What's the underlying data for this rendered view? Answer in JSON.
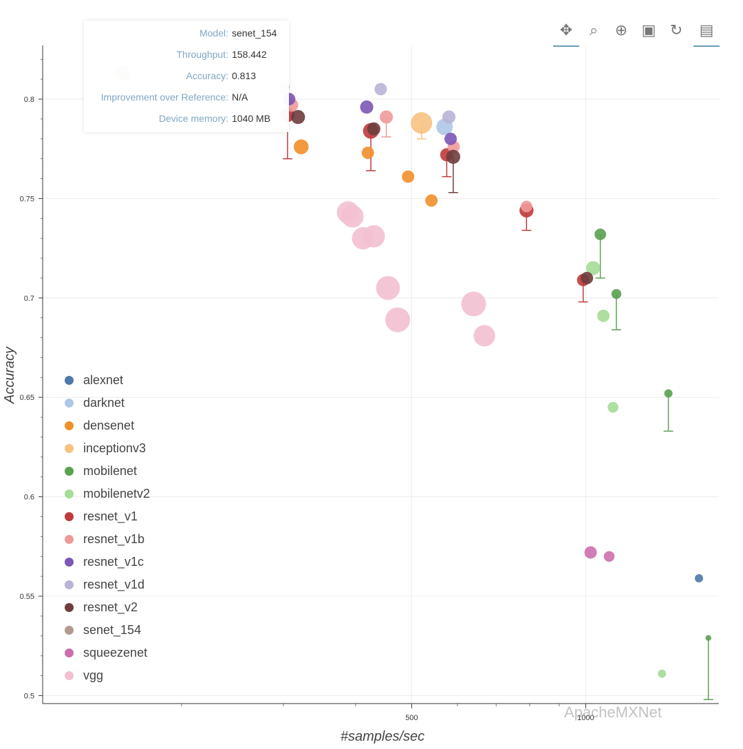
{
  "chart_data": {
    "type": "scatter",
    "title": "",
    "xlabel": "#samples/sec",
    "ylabel": "Accuracy",
    "xscale": "log",
    "xlim": [
      115,
      1700
    ],
    "ylim": [
      0.496,
      0.827
    ],
    "x_ticks": [
      {
        "value": 500,
        "label": "500"
      },
      {
        "value": 1000,
        "label": "1000"
      }
    ],
    "y_ticks": [
      {
        "value": 0.5,
        "label": "0.5"
      },
      {
        "value": 0.55,
        "label": "0.55"
      },
      {
        "value": 0.6,
        "label": "0.6"
      },
      {
        "value": 0.65,
        "label": "0.65"
      },
      {
        "value": 0.7,
        "label": "0.7"
      },
      {
        "value": 0.75,
        "label": "0.75"
      },
      {
        "value": 0.8,
        "label": "0.8"
      }
    ],
    "grid": true,
    "legend_position": "bottom-left",
    "series": [
      {
        "name": "alexnet",
        "color": "#4e79a7",
        "points": [
          {
            "x": 1570,
            "y": 0.559,
            "size": 1.0
          }
        ]
      },
      {
        "name": "darknet",
        "color": "#aec7e8",
        "points": [
          {
            "x": 570,
            "y": 0.786,
            "size": 2.0
          }
        ]
      },
      {
        "name": "densenet",
        "color": "#f28e2b",
        "points": [
          {
            "x": 322,
            "y": 0.776,
            "size": 1.8
          },
          {
            "x": 420,
            "y": 0.773,
            "size": 1.5
          },
          {
            "x": 493,
            "y": 0.761,
            "size": 1.5
          },
          {
            "x": 541,
            "y": 0.749,
            "size": 1.5
          }
        ]
      },
      {
        "name": "inceptionv3",
        "color": "#f7c282",
        "points": [
          {
            "x": 520,
            "y": 0.788,
            "size": 2.6,
            "err": 0.008
          }
        ]
      },
      {
        "name": "mobilenet",
        "color": "#59a14f",
        "points": [
          {
            "x": 1060,
            "y": 0.732,
            "size": 1.4,
            "err": 0.022
          },
          {
            "x": 1130,
            "y": 0.702,
            "size": 1.2,
            "err": 0.018
          },
          {
            "x": 1390,
            "y": 0.652,
            "size": 1.0,
            "err": 0.019
          },
          {
            "x": 1630,
            "y": 0.529,
            "size": 0.7,
            "err": 0.031
          }
        ]
      },
      {
        "name": "mobilenetv2",
        "color": "#a5dc97",
        "points": [
          {
            "x": 1030,
            "y": 0.715,
            "size": 1.7
          },
          {
            "x": 1073,
            "y": 0.691,
            "size": 1.5
          },
          {
            "x": 1115,
            "y": 0.645,
            "size": 1.3
          },
          {
            "x": 1355,
            "y": 0.511,
            "size": 1.0
          }
        ]
      },
      {
        "name": "resnet_v1",
        "color": "#c0393b",
        "points": [
          {
            "x": 305,
            "y": 0.792,
            "size": 1.7,
            "err": 0.022
          },
          {
            "x": 425,
            "y": 0.784,
            "size": 1.9,
            "err": 0.02
          },
          {
            "x": 575,
            "y": 0.772,
            "size": 1.6,
            "err": 0.011
          },
          {
            "x": 790,
            "y": 0.744,
            "size": 1.7,
            "err": 0.01
          },
          {
            "x": 990,
            "y": 0.709,
            "size": 1.5,
            "err": 0.011
          }
        ]
      },
      {
        "name": "resnet_v1b",
        "color": "#ef9a9a",
        "points": [
          {
            "x": 310,
            "y": 0.797,
            "size": 1.6
          },
          {
            "x": 452,
            "y": 0.791,
            "size": 1.6,
            "err": 0.01
          },
          {
            "x": 591,
            "y": 0.776,
            "size": 1.5
          },
          {
            "x": 790,
            "y": 0.746,
            "size": 1.4
          }
        ]
      },
      {
        "name": "resnet_v1c",
        "color": "#7b57b6",
        "points": [
          {
            "x": 307,
            "y": 0.8,
            "size": 1.5
          },
          {
            "x": 418,
            "y": 0.796,
            "size": 1.6
          },
          {
            "x": 584,
            "y": 0.78,
            "size": 1.5
          }
        ]
      },
      {
        "name": "resnet_v1d",
        "color": "#b8b4d6",
        "points": [
          {
            "x": 300,
            "y": 0.806,
            "size": 1.5
          },
          {
            "x": 442,
            "y": 0.805,
            "size": 1.5
          },
          {
            "x": 580,
            "y": 0.791,
            "size": 1.6
          }
        ]
      },
      {
        "name": "resnet_v2",
        "color": "#6e3d3d",
        "points": [
          {
            "x": 318,
            "y": 0.791,
            "size": 1.7
          },
          {
            "x": 430,
            "y": 0.785,
            "size": 1.6
          },
          {
            "x": 590,
            "y": 0.771,
            "size": 1.7,
            "err": 0.018
          },
          {
            "x": 1005,
            "y": 0.71,
            "size": 1.5
          }
        ]
      },
      {
        "name": "senet_154",
        "color": "#b39a90",
        "points": [
          {
            "x": 158.442,
            "y": 0.813,
            "size": 1.8
          }
        ]
      },
      {
        "name": "squeezenet",
        "color": "#cc6fae",
        "points": [
          {
            "x": 1020,
            "y": 0.572,
            "size": 1.5
          },
          {
            "x": 1098,
            "y": 0.57,
            "size": 1.3
          }
        ]
      },
      {
        "name": "vgg",
        "color": "#f3c0d0",
        "points": [
          {
            "x": 388,
            "y": 0.743,
            "size": 2.7
          },
          {
            "x": 395,
            "y": 0.741,
            "size": 2.7
          },
          {
            "x": 412,
            "y": 0.73,
            "size": 2.7
          },
          {
            "x": 430,
            "y": 0.731,
            "size": 2.7
          },
          {
            "x": 455,
            "y": 0.705,
            "size": 2.9
          },
          {
            "x": 473,
            "y": 0.689,
            "size": 3.0
          },
          {
            "x": 640,
            "y": 0.697,
            "size": 3.0
          },
          {
            "x": 668,
            "y": 0.681,
            "size": 2.6
          }
        ]
      }
    ]
  },
  "tooltip": {
    "rows": [
      {
        "key": "Model:",
        "value": "senet_154"
      },
      {
        "key": "Throughput:",
        "value": "158.442"
      },
      {
        "key": "Accuracy:",
        "value": "0.813"
      },
      {
        "key": "Improvement over Reference:",
        "value": "N/A"
      },
      {
        "key": "Device memory:",
        "value": "1040 MB"
      }
    ]
  },
  "toolbar": {
    "tools": [
      {
        "name": "pan-tool-icon",
        "glyph": "✥"
      },
      {
        "name": "box-zoom-tool-icon",
        "glyph": "⌕"
      },
      {
        "name": "wheel-zoom-tool-icon",
        "glyph": "⊕"
      },
      {
        "name": "save-tool-icon",
        "glyph": "▣"
      },
      {
        "name": "reset-tool-icon",
        "glyph": "↻"
      },
      {
        "name": "hover-tool-icon",
        "glyph": "▤"
      }
    ]
  },
  "watermark": {
    "text": "ApacheMXNet"
  }
}
